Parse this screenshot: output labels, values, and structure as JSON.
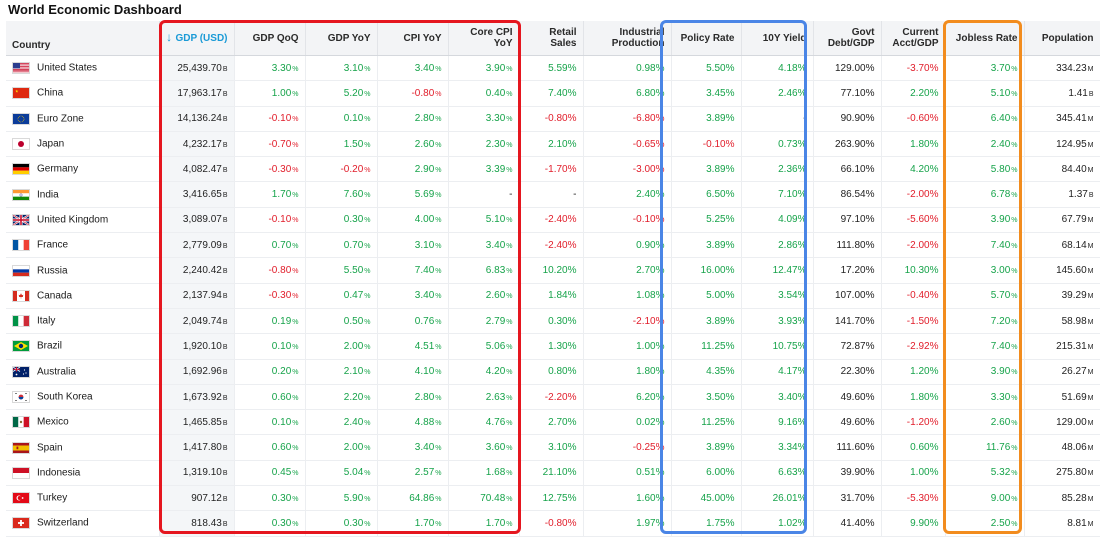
{
  "title": "World Economic Dashboard",
  "columns": [
    "Country",
    "GDP (USD)",
    "GDP QoQ",
    "GDP YoY",
    "CPI YoY",
    "Core CPI YoY",
    "Retail Sales",
    "Industrial Production",
    "Policy Rate",
    "10Y Yield",
    "Govt Debt/GDP",
    "Current Acct/GDP",
    "Jobless Rate",
    "Population"
  ],
  "sort_icon": "arrow-down-icon",
  "highlight_colors": {
    "red": "#e5161f",
    "blue": "#4a85e6",
    "orange": "#f28c1e"
  },
  "rows": [
    {
      "country": "United States",
      "flag": "us",
      "gdp": "25,439.70",
      "gdp_s": "B",
      "qoq": "3.30",
      "yoy": "3.10",
      "cpi": "3.40",
      "core": "3.90",
      "retail": "5.59",
      "ind": "0.98",
      "policy": "5.50",
      "y10": "4.18",
      "debt": "129.00",
      "ca": "-3.70",
      "jobless": "3.70",
      "pop": "334.23",
      "pop_s": "M"
    },
    {
      "country": "China",
      "flag": "cn",
      "gdp": "17,963.17",
      "gdp_s": "B",
      "qoq": "1.00",
      "yoy": "5.20",
      "cpi": "-0.80",
      "core": "0.40",
      "retail": "7.40",
      "ind": "6.80",
      "policy": "3.45",
      "y10": "2.46",
      "debt": "77.10",
      "ca": "2.20",
      "jobless": "5.10",
      "pop": "1.41",
      "pop_s": "B"
    },
    {
      "country": "Euro Zone",
      "flag": "eu",
      "gdp": "14,136.24",
      "gdp_s": "B",
      "qoq": "-0.10",
      "yoy": "0.10",
      "cpi": "2.80",
      "core": "3.30",
      "retail": "-0.80",
      "ind": "-6.80",
      "policy": "3.89",
      "y10": "-",
      "debt": "90.90",
      "ca": "-0.60",
      "jobless": "6.40",
      "pop": "345.41",
      "pop_s": "M"
    },
    {
      "country": "Japan",
      "flag": "jp",
      "gdp": "4,232.17",
      "gdp_s": "B",
      "qoq": "-0.70",
      "yoy": "1.50",
      "cpi": "2.60",
      "core": "2.30",
      "retail": "2.10",
      "ind": "-0.65",
      "policy": "-0.10",
      "y10": "0.73",
      "debt": "263.90",
      "ca": "1.80",
      "jobless": "2.40",
      "pop": "124.95",
      "pop_s": "M"
    },
    {
      "country": "Germany",
      "flag": "de",
      "gdp": "4,082.47",
      "gdp_s": "B",
      "qoq": "-0.30",
      "yoy": "-0.20",
      "cpi": "2.90",
      "core": "3.39",
      "retail": "-1.70",
      "ind": "-3.00",
      "policy": "3.89",
      "y10": "2.36",
      "debt": "66.10",
      "ca": "4.20",
      "jobless": "5.80",
      "pop": "84.40",
      "pop_s": "M"
    },
    {
      "country": "India",
      "flag": "in",
      "gdp": "3,416.65",
      "gdp_s": "B",
      "qoq": "1.70",
      "yoy": "7.60",
      "cpi": "5.69",
      "core": "-",
      "retail": "-",
      "ind": "2.40",
      "policy": "6.50",
      "y10": "7.10",
      "debt": "86.54",
      "ca": "-2.00",
      "jobless": "6.78",
      "pop": "1.37",
      "pop_s": "B"
    },
    {
      "country": "United Kingdom",
      "flag": "gb",
      "gdp": "3,089.07",
      "gdp_s": "B",
      "qoq": "-0.10",
      "yoy": "0.30",
      "cpi": "4.00",
      "core": "5.10",
      "retail": "-2.40",
      "ind": "-0.10",
      "policy": "5.25",
      "y10": "4.09",
      "debt": "97.10",
      "ca": "-5.60",
      "jobless": "3.90",
      "pop": "67.79",
      "pop_s": "M"
    },
    {
      "country": "France",
      "flag": "fr",
      "gdp": "2,779.09",
      "gdp_s": "B",
      "qoq": "0.70",
      "yoy": "0.70",
      "cpi": "3.10",
      "core": "3.40",
      "retail": "-2.40",
      "ind": "0.90",
      "policy": "3.89",
      "y10": "2.86",
      "debt": "111.80",
      "ca": "-2.00",
      "jobless": "7.40",
      "pop": "68.14",
      "pop_s": "M"
    },
    {
      "country": "Russia",
      "flag": "ru",
      "gdp": "2,240.42",
      "gdp_s": "B",
      "qoq": "-0.80",
      "yoy": "5.50",
      "cpi": "7.40",
      "core": "6.83",
      "retail": "10.20",
      "ind": "2.70",
      "policy": "16.00",
      "y10": "12.47",
      "debt": "17.20",
      "ca": "10.30",
      "jobless": "3.00",
      "pop": "145.60",
      "pop_s": "M"
    },
    {
      "country": "Canada",
      "flag": "ca",
      "gdp": "2,137.94",
      "gdp_s": "B",
      "qoq": "-0.30",
      "yoy": "0.47",
      "cpi": "3.40",
      "core": "2.60",
      "retail": "1.84",
      "ind": "1.08",
      "policy": "5.00",
      "y10": "3.54",
      "debt": "107.00",
      "ca": "-0.40",
      "jobless": "5.70",
      "pop": "39.29",
      "pop_s": "M"
    },
    {
      "country": "Italy",
      "flag": "it",
      "gdp": "2,049.74",
      "gdp_s": "B",
      "qoq": "0.19",
      "yoy": "0.50",
      "cpi": "0.76",
      "core": "2.79",
      "retail": "0.30",
      "ind": "-2.10",
      "policy": "3.89",
      "y10": "3.93",
      "debt": "141.70",
      "ca": "-1.50",
      "jobless": "7.20",
      "pop": "58.98",
      "pop_s": "M"
    },
    {
      "country": "Brazil",
      "flag": "br",
      "gdp": "1,920.10",
      "gdp_s": "B",
      "qoq": "0.10",
      "yoy": "2.00",
      "cpi": "4.51",
      "core": "5.06",
      "retail": "1.30",
      "ind": "1.00",
      "policy": "11.25",
      "y10": "10.75",
      "debt": "72.87",
      "ca": "-2.92",
      "jobless": "7.40",
      "pop": "215.31",
      "pop_s": "M"
    },
    {
      "country": "Australia",
      "flag": "au",
      "gdp": "1,692.96",
      "gdp_s": "B",
      "qoq": "0.20",
      "yoy": "2.10",
      "cpi": "4.10",
      "core": "4.20",
      "retail": "0.80",
      "ind": "1.80",
      "policy": "4.35",
      "y10": "4.17",
      "debt": "22.30",
      "ca": "1.20",
      "jobless": "3.90",
      "pop": "26.27",
      "pop_s": "M"
    },
    {
      "country": "South Korea",
      "flag": "kr",
      "gdp": "1,673.92",
      "gdp_s": "B",
      "qoq": "0.60",
      "yoy": "2.20",
      "cpi": "2.80",
      "core": "2.63",
      "retail": "-2.20",
      "ind": "6.20",
      "policy": "3.50",
      "y10": "3.40",
      "debt": "49.60",
      "ca": "1.80",
      "jobless": "3.30",
      "pop": "51.69",
      "pop_s": "M"
    },
    {
      "country": "Mexico",
      "flag": "mx",
      "gdp": "1,465.85",
      "gdp_s": "B",
      "qoq": "0.10",
      "yoy": "2.40",
      "cpi": "4.88",
      "core": "4.76",
      "retail": "2.70",
      "ind": "0.02",
      "policy": "11.25",
      "y10": "9.16",
      "debt": "49.60",
      "ca": "-1.20",
      "jobless": "2.60",
      "pop": "129.00",
      "pop_s": "M"
    },
    {
      "country": "Spain",
      "flag": "es",
      "gdp": "1,417.80",
      "gdp_s": "B",
      "qoq": "0.60",
      "yoy": "2.00",
      "cpi": "3.40",
      "core": "3.60",
      "retail": "3.10",
      "ind": "-0.25",
      "policy": "3.89",
      "y10": "3.34",
      "debt": "111.60",
      "ca": "0.60",
      "jobless": "11.76",
      "pop": "48.06",
      "pop_s": "M"
    },
    {
      "country": "Indonesia",
      "flag": "id",
      "gdp": "1,319.10",
      "gdp_s": "B",
      "qoq": "0.45",
      "yoy": "5.04",
      "cpi": "2.57",
      "core": "1.68",
      "retail": "21.10",
      "ind": "0.51",
      "policy": "6.00",
      "y10": "6.63",
      "debt": "39.90",
      "ca": "1.00",
      "jobless": "5.32",
      "pop": "275.80",
      "pop_s": "M"
    },
    {
      "country": "Turkey",
      "flag": "tr",
      "gdp": "907.12",
      "gdp_s": "B",
      "qoq": "0.30",
      "yoy": "5.90",
      "cpi": "64.86",
      "core": "70.48",
      "retail": "12.75",
      "ind": "1.60",
      "policy": "45.00",
      "y10": "26.01",
      "debt": "31.70",
      "ca": "-5.30",
      "jobless": "9.00",
      "pop": "85.28",
      "pop_s": "M"
    },
    {
      "country": "Switzerland",
      "flag": "ch",
      "gdp": "818.43",
      "gdp_s": "B",
      "qoq": "0.30",
      "yoy": "0.30",
      "cpi": "1.70",
      "core": "1.70",
      "retail": "-0.80",
      "ind": "1.97",
      "policy": "1.75",
      "y10": "1.02",
      "debt": "41.40",
      "ca": "9.90",
      "jobless": "2.50",
      "pop": "8.81",
      "pop_s": "M"
    }
  ]
}
